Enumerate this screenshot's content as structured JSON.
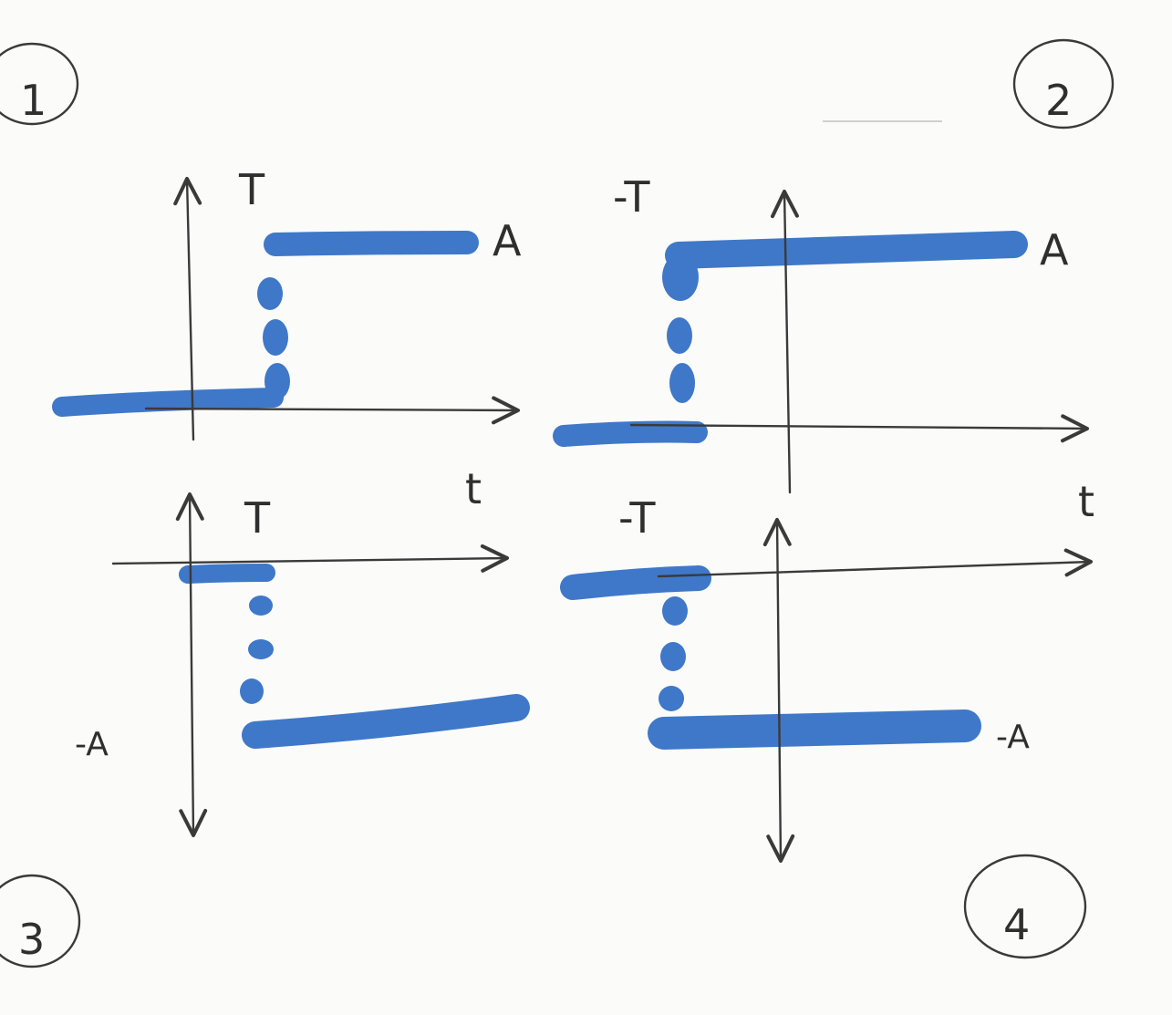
{
  "colors": {
    "signal": "#3f78c8",
    "ink": "#3a3a3a",
    "paper": "#fbfbfa"
  },
  "panels": [
    {
      "id": "1",
      "badge": "1",
      "step_label": "T",
      "level_label": "A",
      "time_label": "t",
      "level": "A",
      "step_at": "T"
    },
    {
      "id": "2",
      "badge": "2",
      "step_label": "-T",
      "level_label": "A",
      "time_label": "t",
      "level": "A",
      "step_at": "-T"
    },
    {
      "id": "3",
      "badge": "3",
      "step_label": "T",
      "level_label": "-A",
      "level": "-A",
      "step_at": "T"
    },
    {
      "id": "4",
      "badge": "4",
      "step_label": "-T",
      "level_label": "-A",
      "level": "-A",
      "step_at": "-T"
    }
  ]
}
